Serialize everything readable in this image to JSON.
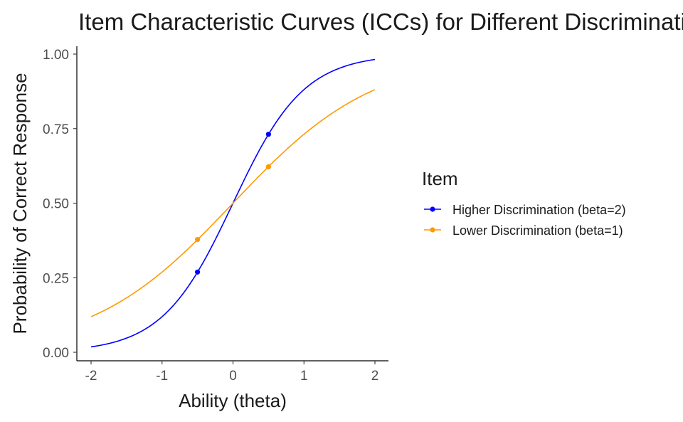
{
  "chart_data": {
    "type": "line",
    "title": "Item Characteristic Curves (ICCs) for Different Discrimination",
    "xlabel": "Ability (theta)",
    "ylabel": "Probability of Correct Response",
    "xlim": [
      -2,
      2
    ],
    "ylim": [
      0,
      1
    ],
    "xticks": [
      -2,
      -1,
      0,
      1,
      2
    ],
    "xtick_labels": [
      "-2",
      "-1",
      "0",
      "1",
      "2"
    ],
    "yticks": [
      0,
      0.25,
      0.5,
      0.75,
      1
    ],
    "ytick_labels": [
      "0.00",
      "0.25",
      "0.50",
      "0.75",
      "1.00"
    ],
    "grid": false,
    "legend": {
      "title": "Item",
      "position": "right"
    },
    "series": [
      {
        "name": "Higher Discrimination (beta=2)",
        "color": "#0000ff",
        "discrimination": 2,
        "curve_x_range": [
          -2,
          2
        ],
        "points": [
          {
            "x": -0.5,
            "y": 0.269
          },
          {
            "x": 0.5,
            "y": 0.731
          }
        ]
      },
      {
        "name": "Lower Discrimination (beta=1)",
        "color": "#ff9900",
        "discrimination": 1,
        "curve_x_range": [
          -2,
          2
        ],
        "points": [
          {
            "x": -0.5,
            "y": 0.378
          },
          {
            "x": 0.5,
            "y": 0.622
          }
        ]
      }
    ]
  }
}
